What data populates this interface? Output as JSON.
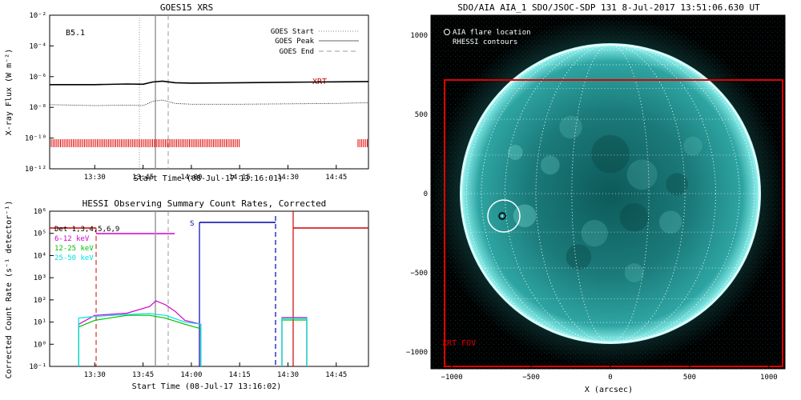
{
  "goes": {
    "title": "GOES15 XRS",
    "ylabel": "X-ray Flux (W m⁻²)",
    "xlabel": "Start Time (08-Jul-17 13:16:01)",
    "class_label": "B5.1",
    "xrt_label": "XRT",
    "legend": [
      {
        "label": "GOES Start",
        "style": "dotted"
      },
      {
        "label": "GOES Peak",
        "style": "solid"
      },
      {
        "label": "GOES End",
        "style": "dashed"
      }
    ],
    "xticks": [
      "13:30",
      "13:45",
      "14:00",
      "14:15",
      "14:30",
      "14:45"
    ],
    "yticks": [
      "10⁻²",
      "10⁻⁴",
      "10⁻⁶",
      "10⁻⁸",
      "10⁻¹⁰",
      "10⁻¹²"
    ]
  },
  "hessi": {
    "title": "HESSI Observing Summary Count Rates, Corrected",
    "ylabel": "Corrected Count Rate (s⁻¹ detector⁻¹)",
    "xlabel": "Start Time (08-Jul-17 13:16:02)",
    "detectors": "Det 1,3,4,5,6,9",
    "s_label": "S",
    "series": [
      {
        "name": "6-12 keV",
        "color": "#d000d0"
      },
      {
        "name": "12-25 keV",
        "color": "#00c000"
      },
      {
        "name": "25-50 keV",
        "color": "#00e0e0"
      }
    ],
    "xticks": [
      "13:30",
      "13:45",
      "14:00",
      "14:15",
      "14:30",
      "14:45"
    ],
    "yticks": [
      "10⁶",
      "10⁵",
      "10⁴",
      "10³",
      "10²",
      "10¹",
      "10⁰",
      "10⁻¹"
    ]
  },
  "aia": {
    "title": "SDO/AIA AIA_1 SDO/JSOC-SDP 131  8-Jul-2017 13:51:06.630 UT",
    "legend_flare": "AIA flare location",
    "legend_rhessi": "RHESSI contours",
    "fov_label": "XRT FOV",
    "xlabel": "X (arcsec)",
    "xticks": [
      "−1000",
      "−500",
      "0",
      "500",
      "1000"
    ],
    "yticks": [
      "1000",
      "500",
      "0",
      "−500",
      "−1000"
    ]
  },
  "chart_data": [
    {
      "type": "line",
      "title": "GOES15 XRS",
      "xlabel": "Start Time (08-Jul-17 13:16:01)",
      "ylabel": "X-ray Flux (W m⁻²)",
      "yscale": "log",
      "ylim": [
        1e-12,
        0.01
      ],
      "xlim": [
        "13:16",
        "14:55"
      ],
      "series": [
        {
          "x": [
            "13:16",
            "13:30",
            "13:40",
            "13:45",
            "13:48",
            "13:51",
            "13:55",
            "14:00",
            "14:15",
            "14:30",
            "14:45",
            "14:55"
          ],
          "values": [
            3e-07,
            3e-07,
            3.3e-07,
            3.2e-07,
            4.5e-07,
            5.1e-07,
            4e-07,
            3.8e-07,
            4e-07,
            4.3e-07,
            4.6e-07,
            4.8e-07
          ]
        },
        {
          "x": [
            "13:16",
            "13:30",
            "13:40",
            "13:45",
            "13:48",
            "13:51",
            "13:55",
            "14:00",
            "14:15",
            "14:30",
            "14:45",
            "14:55"
          ],
          "values": [
            1.5e-08,
            1.3e-08,
            1.4e-08,
            1.3e-08,
            2.5e-08,
            3e-08,
            1.8e-08,
            1.6e-08,
            1.6e-08,
            1.7e-08,
            1.8e-08,
            2e-08
          ]
        }
      ],
      "annotations": [
        "B5.1",
        "XRT"
      ],
      "legend": [
        "GOES Start",
        "GOES Peak",
        "GOES End"
      ],
      "legend_position": "top-right",
      "vlines": {
        "goes_start": "13:46",
        "goes_peak": "13:51",
        "goes_end": "13:54"
      }
    },
    {
      "type": "line",
      "title": "HESSI Observing Summary Count Rates, Corrected",
      "xlabel": "Start Time (08-Jul-17 13:16:02)",
      "ylabel": "Corrected Count Rate (s⁻¹ detector⁻¹)",
      "yscale": "log",
      "ylim": [
        0.1,
        1000000
      ],
      "xlim": [
        "13:16",
        "14:55"
      ],
      "legend_position": "top-left",
      "series": [
        {
          "name": "6-12 keV",
          "x": [
            "13:25",
            "13:30",
            "13:40",
            "13:47",
            "13:49",
            "13:52",
            "13:55",
            "13:58",
            "14:03"
          ],
          "values": [
            8,
            20,
            25,
            50,
            90,
            60,
            30,
            12,
            8
          ]
        },
        {
          "name": "12-25 keV",
          "x": [
            "13:25",
            "13:30",
            "13:40",
            "13:47",
            "13:52",
            "13:58",
            "14:03"
          ],
          "values": [
            6,
            12,
            20,
            20,
            15,
            8,
            5
          ]
        },
        {
          "name": "25-50 keV",
          "x": [
            "13:25",
            "13:30",
            "13:40",
            "13:47",
            "13:52",
            "13:58",
            "14:03"
          ],
          "values": [
            15,
            18,
            22,
            24,
            20,
            10,
            8
          ]
        }
      ],
      "annotations": [
        "Det 1,3,4,5,6,9",
        "S"
      ]
    }
  ]
}
